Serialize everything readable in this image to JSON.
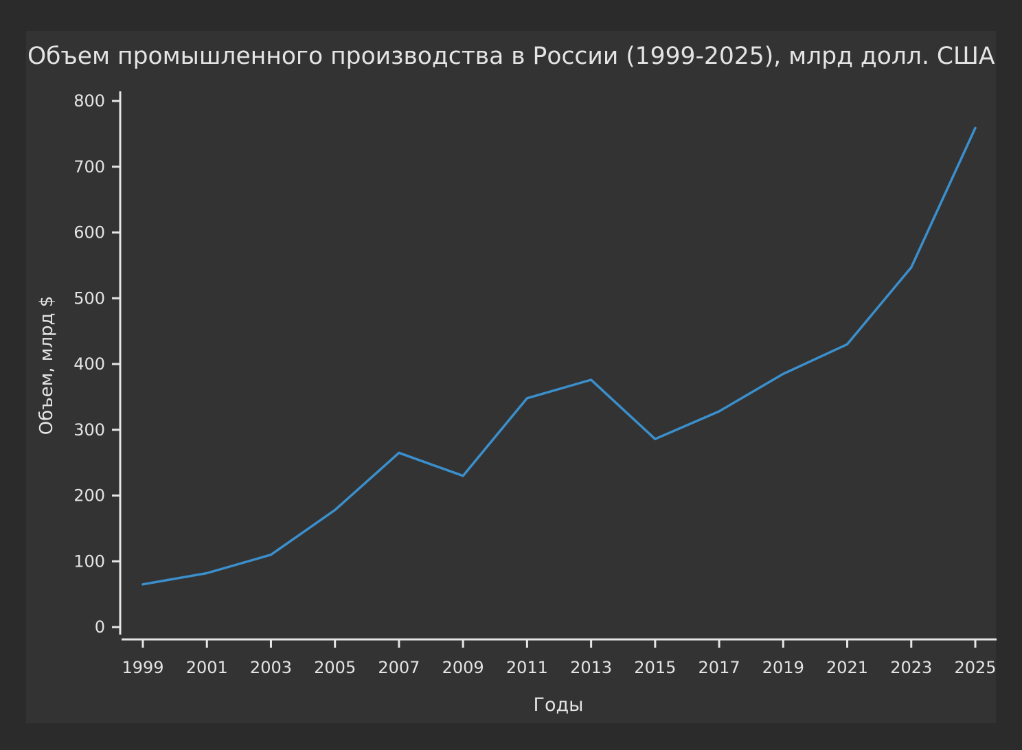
{
  "chart_data": {
    "type": "line",
    "title": "Объем промышленного производства в России (1999-2025), млрд долл. США",
    "xlabel": "Годы",
    "ylabel": "Объем, млрд $",
    "x": [
      1999,
      2001,
      2003,
      2005,
      2007,
      2009,
      2011,
      2013,
      2015,
      2017,
      2019,
      2021,
      2023,
      2025
    ],
    "series": [
      {
        "values": [
          65,
          82,
          110,
          178,
          265,
          230,
          348,
          376,
          286,
          328,
          385,
          430,
          547,
          759
        ]
      }
    ],
    "x_ticks": [
      "1999",
      "2001",
      "2003",
      "2005",
      "2007",
      "2009",
      "2011",
      "2013",
      "2015",
      "2017",
      "2019",
      "2021",
      "2023",
      "2025"
    ],
    "y_ticks": [
      "0",
      "100",
      "200",
      "300",
      "400",
      "500",
      "600",
      "700",
      "800"
    ],
    "xlim": [
      1999,
      2025
    ],
    "ylim": [
      0,
      800
    ],
    "grid": false,
    "line_color": "#3a8fcc",
    "axis_color": "#e6e6e6",
    "text_color": "#e4e4e4",
    "background_color": "#333333"
  }
}
